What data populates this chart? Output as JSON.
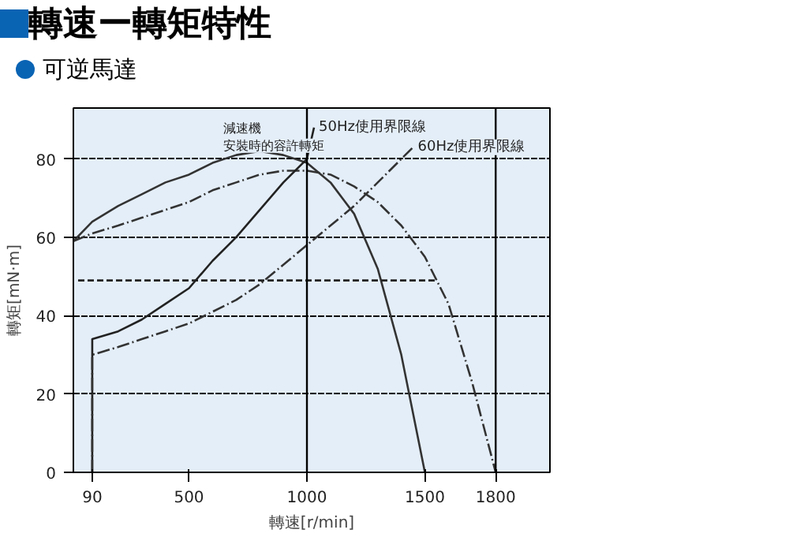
{
  "chart_data": {
    "type": "line",
    "title": "轉速ー轉矩特性",
    "subtitle": "可逆馬達",
    "xlabel": "轉速[r/min]",
    "ylabel": "轉矩[mN·m]",
    "xlim": [
      10,
      2030
    ],
    "ylim": [
      0,
      93
    ],
    "xticks": [
      90,
      500,
      1000,
      1500,
      1800
    ],
    "yticks": [
      0,
      20,
      40,
      60,
      80
    ],
    "grid": "y",
    "marker": "none",
    "series": [
      {
        "color": "#333333",
        "line_style": "solid",
        "x": [
          10,
          90,
          200,
          300,
          400,
          500,
          600,
          700,
          800,
          900,
          1000,
          1100,
          1200,
          1300,
          1400,
          1500
        ],
        "values": [
          59,
          64,
          68,
          71,
          74,
          76,
          79,
          81,
          82,
          81,
          79,
          74,
          66,
          52,
          30,
          0
        ]
      },
      {
        "color": "#333333",
        "line_style": "dashdot",
        "x": [
          10,
          90,
          200,
          300,
          400,
          500,
          600,
          700,
          800,
          900,
          1000,
          1100,
          1200,
          1300,
          1400,
          1500,
          1600,
          1700,
          1800
        ],
        "values": [
          59,
          61,
          63,
          65,
          67,
          69,
          72,
          74,
          76,
          77,
          77,
          76,
          73,
          69,
          63,
          55,
          43,
          23,
          0
        ]
      },
      {
        "color": "#222222",
        "line_style": "solid",
        "x": [
          90,
          90,
          200,
          300,
          400,
          500,
          600,
          700,
          800,
          900,
          1000,
          1030
        ],
        "values": [
          0,
          34,
          36,
          39,
          43,
          47,
          54,
          60,
          67,
          74,
          80,
          88
        ]
      },
      {
        "color": "#333333",
        "line_style": "dashdot",
        "x": [
          90,
          90,
          200,
          300,
          400,
          500,
          600,
          700,
          800,
          900,
          1000,
          1100,
          1200,
          1300,
          1400,
          1450
        ],
        "values": [
          0,
          30,
          32,
          34,
          36,
          38,
          41,
          44,
          48,
          53,
          58,
          63,
          68,
          74,
          80,
          83
        ]
      },
      {
        "color": "#222222",
        "line_style": "dashed",
        "x": [
          30,
          1550
        ],
        "values": [
          49,
          49
        ]
      }
    ],
    "ref_lines": [
      {
        "axis": "x",
        "value": 1000,
        "color": "#000000"
      },
      {
        "axis": "x",
        "value": 1800,
        "color": "#000000"
      }
    ],
    "annotations": [
      "減速機",
      "安裝時的容許轉矩",
      {
        "text": "50Hz使用界限線",
        "x": 1030,
        "y": 88
      },
      {
        "text": "60Hz使用界限線",
        "x": 1450,
        "y": 83
      }
    ]
  }
}
